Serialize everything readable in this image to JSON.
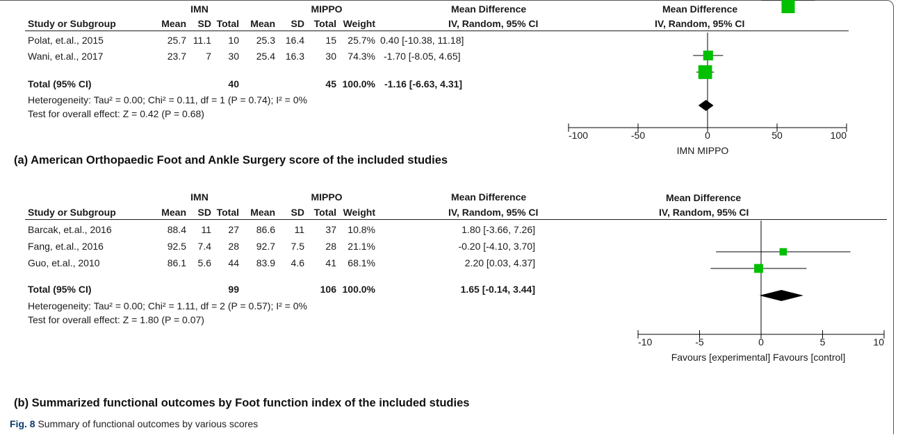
{
  "colors": {
    "box": "#00c000",
    "diamond": "#000000",
    "line": "#000000"
  },
  "panels": [
    {
      "id": "a",
      "exp_group": "IMN",
      "ctrl_group": "MIPPO",
      "header": {
        "study": "Study or Subgroup",
        "mean": "Mean",
        "sd": "SD",
        "total": "Total",
        "weight": "Weight",
        "md_top": "Mean Difference",
        "md_bottom": "IV, Random, 95% CI",
        "plot_top": "Mean Difference",
        "plot_bottom": "IV, Random, 95% CI"
      },
      "rows": [
        {
          "study": "Polat, et.al., 2015",
          "exp_mean": "25.7",
          "exp_sd": "11.1",
          "exp_total": "10",
          "ctrl_mean": "25.3",
          "ctrl_sd": "16.4",
          "ctrl_total": "15",
          "weight": "25.7%",
          "ci_text": "0.40 [-10.38, 11.18]"
        },
        {
          "study": "Wani, et.al., 2017",
          "exp_mean": "23.7",
          "exp_sd": "7",
          "exp_total": "30",
          "ctrl_mean": "25.4",
          "ctrl_sd": "16.3",
          "ctrl_total": "30",
          "weight": "74.3%",
          "ci_text": "-1.70 [-8.05, 4.65]"
        }
      ],
      "total": {
        "label": "Total (95% CI)",
        "exp_total": "40",
        "ctrl_total": "45",
        "weight": "100.0%",
        "ci_text": "-1.16 [-6.63, 4.31]"
      },
      "heterogeneity": "Heterogeneity: Tau² = 0.00; Chi² = 0.11, df = 1 (P = 0.74); I² = 0%",
      "overall": "Test for overall effect: Z = 0.42 (P = 0.68)",
      "favours": "IMN  MIPPO",
      "title": "(a)  American Orthopaedic Foot and Ankle Surgery score of the included studies"
    },
    {
      "id": "b",
      "exp_group": "IMN",
      "ctrl_group": "MIPPO",
      "header": {
        "study": "Study or Subgroup",
        "mean": "Mean",
        "sd": "SD",
        "total": "Total",
        "weight": "Weight",
        "md_top": "Mean Difference",
        "md_bottom": "IV, Random, 95% CI",
        "plot_top": "Mean Difference",
        "plot_bottom": "IV, Random, 95% CI"
      },
      "rows": [
        {
          "study": "Barcak, et.al., 2016",
          "exp_mean": "88.4",
          "exp_sd": "11",
          "exp_total": "27",
          "ctrl_mean": "86.6",
          "ctrl_sd": "11",
          "ctrl_total": "37",
          "weight": "10.8%",
          "ci_text": "1.80 [-3.66, 7.26]"
        },
        {
          "study": "Fang, et.al., 2016",
          "exp_mean": "92.5",
          "exp_sd": "7.4",
          "exp_total": "28",
          "ctrl_mean": "92.7",
          "ctrl_sd": "7.5",
          "ctrl_total": "28",
          "weight": "21.1%",
          "ci_text": "-0.20 [-4.10, 3.70]"
        },
        {
          "study": "Guo, et.al., 2010",
          "exp_mean": "86.1",
          "exp_sd": "5.6",
          "exp_total": "44",
          "ctrl_mean": "83.9",
          "ctrl_sd": "4.6",
          "ctrl_total": "41",
          "weight": "68.1%",
          "ci_text": "2.20 [0.03, 4.37]"
        }
      ],
      "total": {
        "label": "Total (95% CI)",
        "exp_total": "99",
        "ctrl_total": "106",
        "weight": "100.0%",
        "ci_text": "1.65 [-0.14, 3.44]"
      },
      "heterogeneity": "Heterogeneity: Tau² = 0.00; Chi² = 1.11, df = 2 (P = 0.57); I² = 0%",
      "overall": "Test for overall effect: Z = 1.80 (P = 0.07)",
      "favours": "Favours [experimental]  Favours [control]",
      "title": "(b) Summarized functional outcomes by Foot function index of the included studies"
    }
  ],
  "figure_caption": {
    "label": "Fig. 8",
    "text": "Summary of functional outcomes by various scores"
  },
  "chart_data": [
    {
      "type": "forest",
      "xlim": [
        -100,
        100
      ],
      "ticks": [
        -100,
        -50,
        0,
        50,
        100
      ],
      "tick_labels": [
        "-100",
        "-50",
        "0",
        "50",
        "100"
      ],
      "xlabel": "IMN  MIPPO",
      "studies": [
        {
          "name": "Polat, et.al., 2015",
          "md": 0.4,
          "lower": -10.38,
          "upper": 11.18,
          "weight": 25.7
        },
        {
          "name": "Wani, et.al., 2017",
          "md": -1.7,
          "lower": -8.05,
          "upper": 4.65,
          "weight": 74.3
        }
      ],
      "pooled": {
        "md": -1.16,
        "lower": -6.63,
        "upper": 4.31
      }
    },
    {
      "type": "forest",
      "xlim": [
        -10,
        10
      ],
      "ticks": [
        -10,
        -5,
        0,
        5,
        10
      ],
      "tick_labels": [
        "-10",
        "-5",
        "0",
        "5",
        "10"
      ],
      "xlabel": "Favours [experimental]  Favours [control]",
      "studies": [
        {
          "name": "Barcak, et.al., 2016",
          "md": 1.8,
          "lower": -3.66,
          "upper": 7.26,
          "weight": 10.8
        },
        {
          "name": "Fang, et.al., 2016",
          "md": -0.2,
          "lower": -4.1,
          "upper": 3.7,
          "weight": 21.1
        },
        {
          "name": "Guo, et.al., 2010",
          "md": 2.2,
          "lower": 0.03,
          "upper": 4.37,
          "weight": 68.1
        }
      ],
      "pooled": {
        "md": 1.65,
        "lower": -0.14,
        "upper": 3.44
      }
    }
  ]
}
